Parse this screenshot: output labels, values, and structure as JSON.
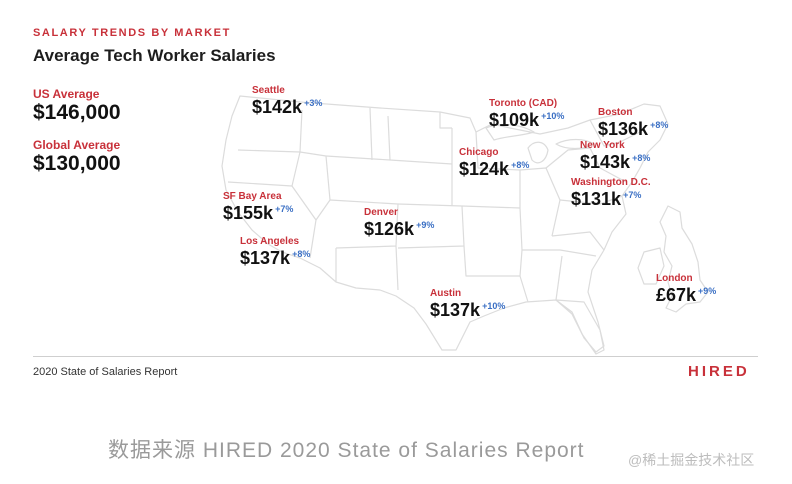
{
  "header": {
    "kicker": "SALARY TRENDS BY MARKET",
    "title": "Average Tech Worker Salaries"
  },
  "stats": [
    {
      "label": "US Average",
      "value": "$146,000"
    },
    {
      "label": "Global Average",
      "value": "$130,000"
    }
  ],
  "cities": [
    {
      "name": "Seattle",
      "value": "$142k",
      "change": "+3%"
    },
    {
      "name": "SF Bay Area",
      "value": "$155k",
      "change": "+7%"
    },
    {
      "name": "Los Angeles",
      "value": "$137k",
      "change": "+8%"
    },
    {
      "name": "Denver",
      "value": "$126k",
      "change": "+9%"
    },
    {
      "name": "Austin",
      "value": "$137k",
      "change": "+10%"
    },
    {
      "name": "Chicago",
      "value": "$124k",
      "change": "+8%"
    },
    {
      "name": "Toronto (CAD)",
      "value": "$109k",
      "change": "+10%"
    },
    {
      "name": "Boston",
      "value": "$136k",
      "change": "+8%"
    },
    {
      "name": "New York",
      "value": "$143k",
      "change": "+8%"
    },
    {
      "name": "Washington D.C.",
      "value": "$131k",
      "change": "+7%"
    },
    {
      "name": "London",
      "value": "£67k",
      "change": "+9%"
    }
  ],
  "footer": {
    "report": "2020 State of Salaries Report",
    "brand": "HIRED"
  },
  "caption": "数据来源 HIRED 2020 State of Salaries Report",
  "watermark": "@稀土掘金技术社区",
  "colors": {
    "accent_red": "#c8313a",
    "change_blue": "#3a6fc4",
    "value_black": "#111111",
    "map_stroke": "#d9d9d9"
  }
}
